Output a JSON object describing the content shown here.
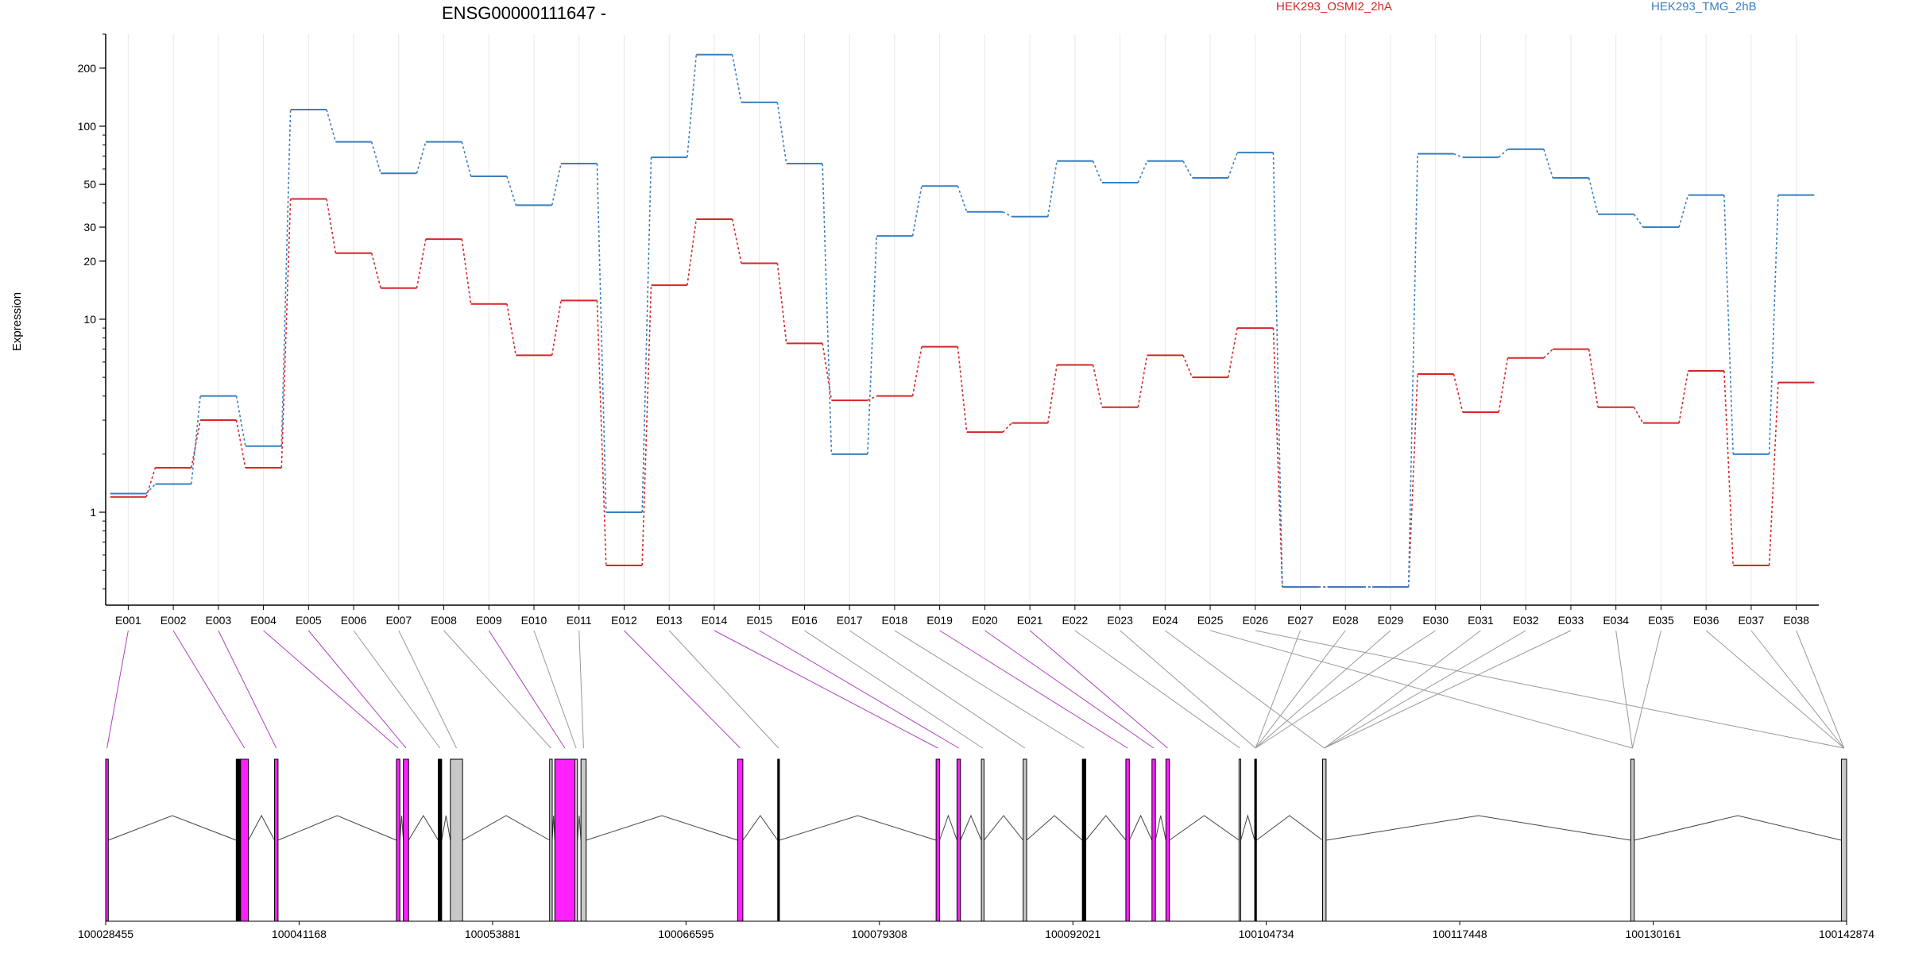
{
  "chart_data": {
    "type": "line",
    "title": "ENSG00000111647 -",
    "ylabel": "Expression",
    "xlabel": "",
    "y_scale": "log",
    "ylim": [
      0.33,
      300
    ],
    "y_ticks": [
      "1",
      "10",
      "20",
      "30",
      "50",
      "100",
      "200"
    ],
    "grid": "vertical",
    "legend_position": "top",
    "categories": [
      "E001",
      "E002",
      "E003",
      "E004",
      "E005",
      "E006",
      "E007",
      "E008",
      "E009",
      "E010",
      "E011",
      "E012",
      "E013",
      "E014",
      "E015",
      "E016",
      "E017",
      "E018",
      "E019",
      "E020",
      "E021",
      "E022",
      "E023",
      "E024",
      "E025",
      "E026",
      "E027",
      "E028",
      "E029",
      "E030",
      "E031",
      "E032",
      "E033",
      "E034",
      "E035",
      "E036",
      "E037",
      "E038"
    ],
    "series": [
      {
        "name": "HEK293_OSMI2_2hA",
        "color": "#d62728",
        "values": [
          1.2,
          1.7,
          3.0,
          1.7,
          42,
          22,
          14.5,
          26,
          12,
          6.5,
          12.5,
          0.53,
          15,
          33,
          19.5,
          7.5,
          3.8,
          4.0,
          7.2,
          2.6,
          2.9,
          5.8,
          3.5,
          6.5,
          5.0,
          9.0,
          0.41,
          0.41,
          0.41,
          5.2,
          3.3,
          6.3,
          7.0,
          3.5,
          2.9,
          5.4,
          0.53,
          4.7
        ]
      },
      {
        "name": "HEK293_TMG_2hB",
        "color": "#3a7fc1",
        "values": [
          1.25,
          1.4,
          4.0,
          2.2,
          122,
          83,
          57,
          83,
          55,
          39,
          64,
          1.0,
          69,
          235,
          133,
          64,
          2.0,
          27,
          49,
          36,
          34,
          66,
          51,
          66,
          54,
          73,
          0.41,
          0.41,
          0.41,
          72,
          69,
          76,
          54,
          35,
          30,
          44,
          2.0,
          44
        ]
      }
    ]
  },
  "gene_model": {
    "coordinate_labels": [
      "100028455",
      "100041168",
      "100053881",
      "100066595",
      "100079308",
      "100092021",
      "100104734",
      "100117448",
      "100130161",
      "100142874"
    ],
    "highlight_color": "#ff20ff",
    "neutral_color": "#c8c8c8"
  }
}
